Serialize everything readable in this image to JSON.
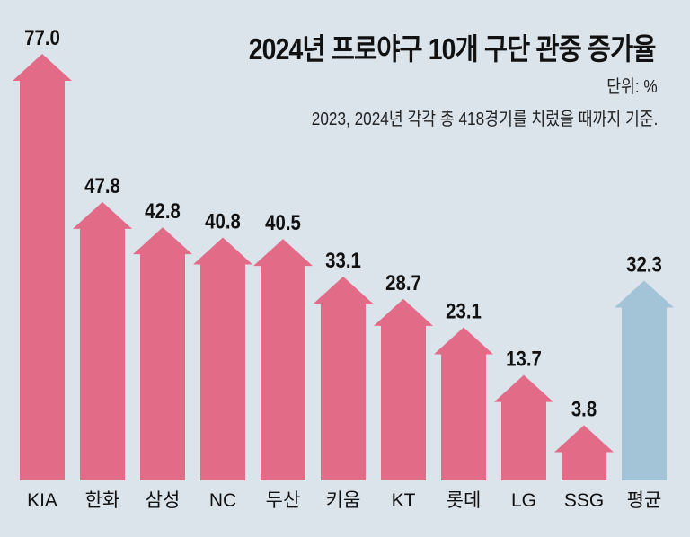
{
  "chart_data": {
    "type": "bar",
    "title": "2024년 프로야구 10개 구단 관중 증가율",
    "unit_label": "단위: %",
    "note": "2023, 2024년 각각 총 418경기를 치렀을 때까지 기준.",
    "categories": [
      "KIA",
      "한화",
      "삼성",
      "NC",
      "두산",
      "키움",
      "KT",
      "롯데",
      "LG",
      "SSG",
      "평균"
    ],
    "values": [
      77.0,
      47.8,
      42.8,
      40.8,
      40.5,
      33.1,
      28.7,
      23.1,
      13.7,
      3.8,
      32.3
    ],
    "value_labels": [
      "77.0",
      "47.8",
      "42.8",
      "40.8",
      "40.5",
      "33.1",
      "28.7",
      "23.1",
      "13.7",
      "3.8",
      "32.3"
    ],
    "colors": {
      "team": "#e26c88",
      "average": "#a3c3d7",
      "background": "#dbe3eb"
    },
    "mark_shape": "up-arrow",
    "grid": false
  }
}
